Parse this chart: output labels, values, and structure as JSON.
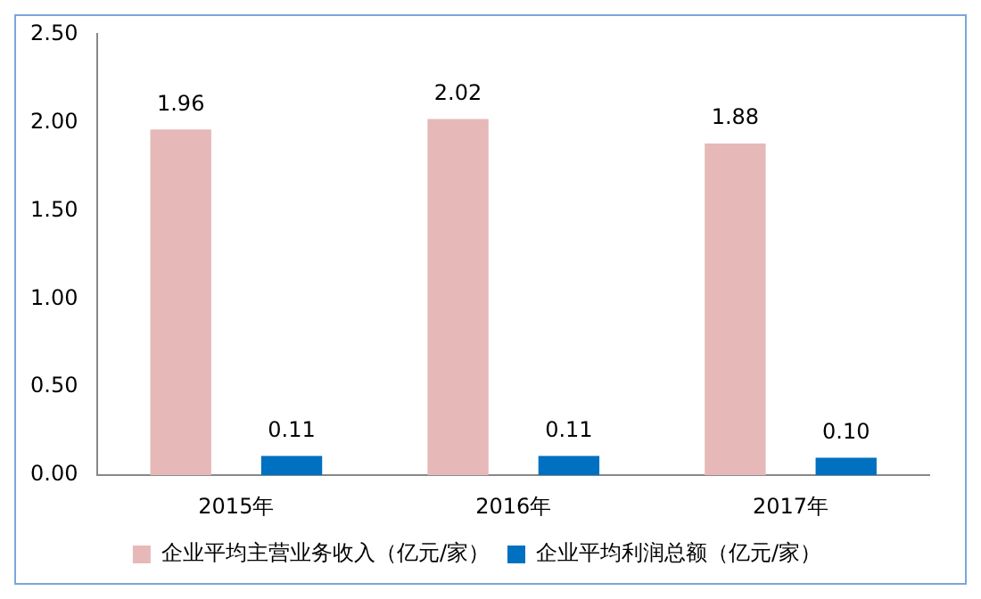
{
  "chart_data": {
    "type": "bar",
    "categories": [
      "2015年",
      "2016年",
      "2017年"
    ],
    "series": [
      {
        "name": "企业平均主营业务收入（亿元/家）",
        "color": "#e6b9b8",
        "values": [
          1.96,
          2.02,
          1.88
        ],
        "value_labels": [
          "1.96",
          "2.02",
          "1.88"
        ]
      },
      {
        "name": "企业平均利润总额（亿元/家）",
        "color": "#0070c0",
        "values": [
          0.11,
          0.11,
          0.1
        ],
        "value_labels": [
          "0.11",
          "0.11",
          "0.10"
        ]
      }
    ],
    "ylim": [
      0,
      2.5
    ],
    "yticks": [
      {
        "value": 0,
        "label": "0.00"
      },
      {
        "value": 0.5,
        "label": "0.50"
      },
      {
        "value": 1,
        "label": "1.00"
      },
      {
        "value": 1.5,
        "label": "1.50"
      },
      {
        "value": 2,
        "label": "2.00"
      },
      {
        "value": 2.5,
        "label": "2.50"
      }
    ],
    "grid": false,
    "legend": "bottom"
  }
}
